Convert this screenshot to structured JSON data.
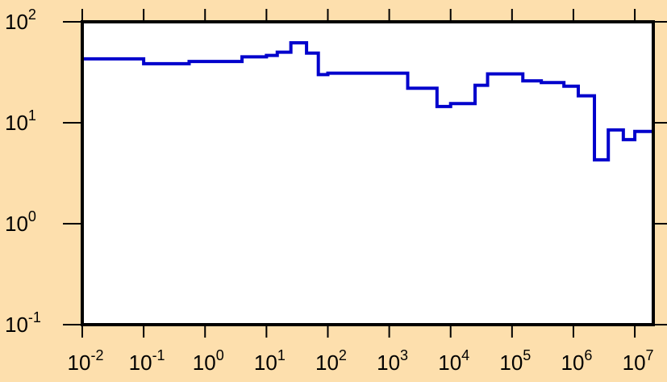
{
  "colors": {
    "background": "#fddfad",
    "plot_area": "#ffffff",
    "series": "#0000cc",
    "axes": "#000000"
  },
  "chart_data": {
    "type": "line",
    "style": "step histogram",
    "title": "",
    "xlabel": "",
    "ylabel": "",
    "x_scale": "log",
    "y_scale": "log",
    "xlim": [
      0.01,
      20000000
    ],
    "ylim": [
      0.1,
      100
    ],
    "grid": false,
    "legend": "none",
    "x_ticks": [
      {
        "value": 0.01,
        "base": "10",
        "exp": "-2"
      },
      {
        "value": 0.1,
        "base": "10",
        "exp": "-1"
      },
      {
        "value": 1,
        "base": "10",
        "exp": "0"
      },
      {
        "value": 10,
        "base": "10",
        "exp": "1"
      },
      {
        "value": 100,
        "base": "10",
        "exp": "2"
      },
      {
        "value": 1000,
        "base": "10",
        "exp": "3"
      },
      {
        "value": 10000,
        "base": "10",
        "exp": "4"
      },
      {
        "value": 100000,
        "base": "10",
        "exp": "5"
      },
      {
        "value": 1000000,
        "base": "10",
        "exp": "6"
      },
      {
        "value": 10000000,
        "base": "10",
        "exp": "7"
      }
    ],
    "y_ticks": [
      {
        "value": 0.1,
        "base": "10",
        "exp": "-1"
      },
      {
        "value": 1,
        "base": "10",
        "exp": "0"
      },
      {
        "value": 10,
        "base": "10",
        "exp": "1"
      },
      {
        "value": 100,
        "base": "10",
        "exp": "2"
      }
    ],
    "bins": [
      {
        "x0": 0.01,
        "x1": 0.1,
        "y": 43
      },
      {
        "x0": 0.1,
        "x1": 0.55,
        "y": 38.5
      },
      {
        "x0": 0.55,
        "x1": 4,
        "y": 40.5
      },
      {
        "x0": 4,
        "x1": 10,
        "y": 45
      },
      {
        "x0": 10,
        "x1": 15,
        "y": 46.5
      },
      {
        "x0": 15,
        "x1": 25,
        "y": 50
      },
      {
        "x0": 25,
        "x1": 45,
        "y": 62
      },
      {
        "x0": 45,
        "x1": 70,
        "y": 49
      },
      {
        "x0": 70,
        "x1": 100,
        "y": 30
      },
      {
        "x0": 100,
        "x1": 2000,
        "y": 31
      },
      {
        "x0": 2000,
        "x1": 6000,
        "y": 22
      },
      {
        "x0": 6000,
        "x1": 10000,
        "y": 14.5
      },
      {
        "x0": 10000,
        "x1": 25000,
        "y": 15.5
      },
      {
        "x0": 25000,
        "x1": 40000,
        "y": 23.5
      },
      {
        "x0": 40000,
        "x1": 150000,
        "y": 30.5
      },
      {
        "x0": 150000,
        "x1": 300000,
        "y": 26
      },
      {
        "x0": 300000,
        "x1": 700000,
        "y": 25
      },
      {
        "x0": 700000,
        "x1": 1200000,
        "y": 23
      },
      {
        "x0": 1200000,
        "x1": 2200000,
        "y": 18.5
      },
      {
        "x0": 2200000,
        "x1": 3700000,
        "y": 4.3
      },
      {
        "x0": 3700000,
        "x1": 6500000,
        "y": 8.5
      },
      {
        "x0": 6500000,
        "x1": 10000000,
        "y": 6.8
      },
      {
        "x0": 10000000,
        "x1": 20000000,
        "y": 8.2
      }
    ]
  }
}
